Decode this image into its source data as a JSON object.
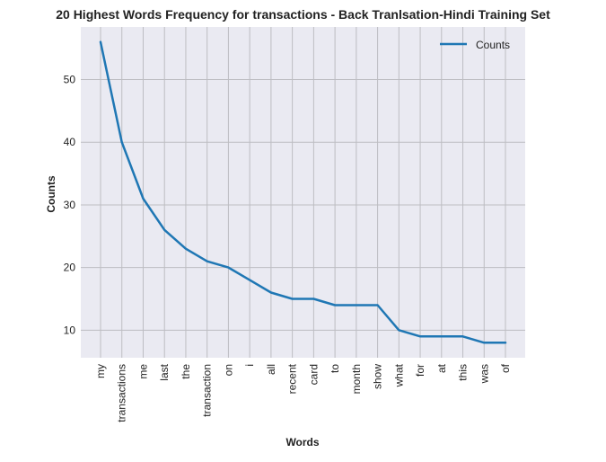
{
  "chart_data": {
    "type": "line",
    "title": "20 Highest Words Frequency for transactions - Back Tranlsation-Hindi Training Set",
    "xlabel": "Words",
    "ylabel": "Counts",
    "categories": [
      "my",
      "transactions",
      "me",
      "last",
      "the",
      "transaction",
      "on",
      "i",
      "all",
      "recent",
      "card",
      "to",
      "month",
      "show",
      "what",
      "for",
      "at",
      "this",
      "was",
      "of"
    ],
    "series": [
      {
        "name": "Counts",
        "values": [
          56,
          40,
          31,
          26,
          23,
          21,
          20,
          18,
          16,
          15,
          15,
          14,
          14,
          14,
          10,
          9,
          9,
          9,
          8,
          8
        ]
      }
    ],
    "ylim": [
      5.6,
      58.4
    ],
    "yticks": [
      10,
      20,
      30,
      40,
      50
    ],
    "grid": true,
    "legend_position": "top-right",
    "colors": {
      "line": "#1f77b4",
      "plot_background": "#eaeaf2",
      "grid": "#bdbdc2"
    }
  }
}
